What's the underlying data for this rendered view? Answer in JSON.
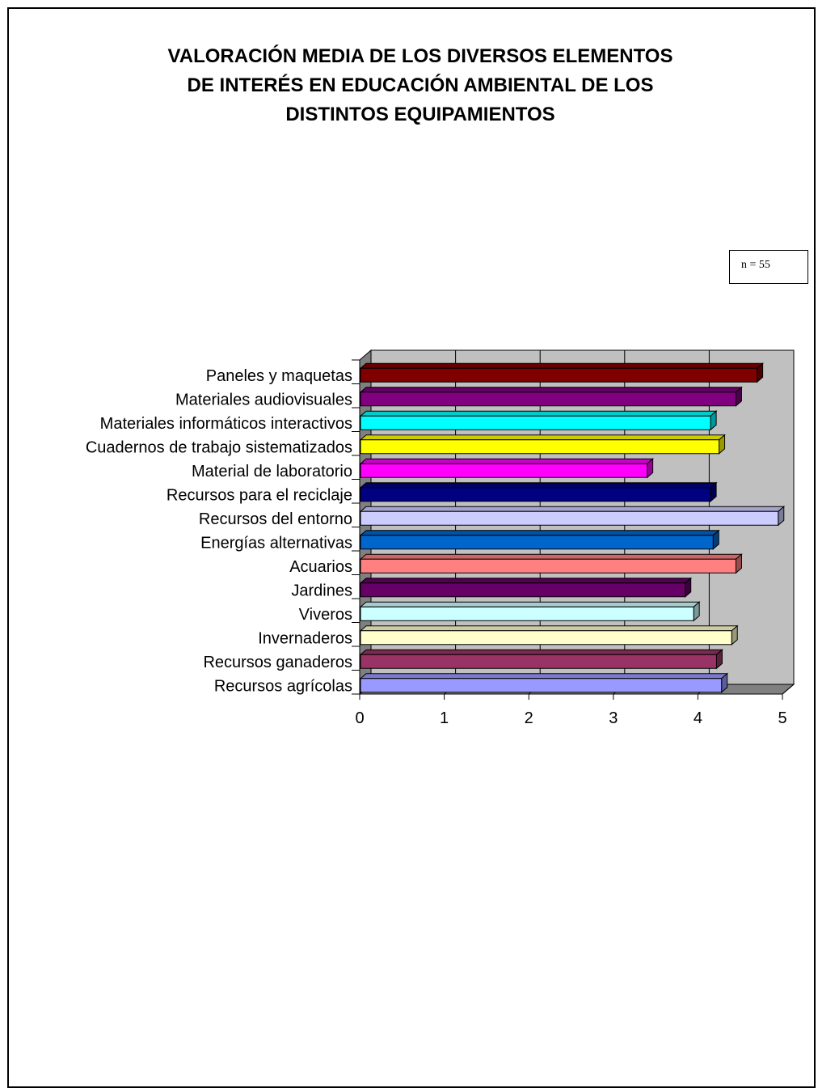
{
  "chart_data": {
    "type": "bar",
    "orientation": "horizontal",
    "three_d": true,
    "title": "VALORACIÓN MEDIA DE LOS DIVERSOS ELEMENTOS\nDE INTERÉS EN EDUCACIÓN AMBIENTAL DE LOS\nDISTINTOS EQUIPAMIENTOS",
    "annotation": "n = 55",
    "xlim": [
      0,
      5
    ],
    "x_ticks": [
      "0",
      "1",
      "2",
      "3",
      "4",
      "5"
    ],
    "grid": true,
    "legend": "none",
    "plot_background": "#c0c0c0",
    "categories": [
      "Paneles y maquetas",
      "Materiales audiovisuales",
      "Materiales informáticos interactivos",
      "Cuadernos de trabajo sistematizados",
      "Material de laboratorio",
      "Recursos para el reciclaje",
      "Recursos del entorno",
      "Energías alternativas",
      "Acuarios",
      "Jardines",
      "Viveros",
      "Invernaderos",
      "Recursos ganaderos",
      "Recursos agrícolas"
    ],
    "values": [
      4.7,
      4.45,
      4.15,
      4.25,
      3.4,
      4.15,
      4.95,
      4.18,
      4.45,
      3.85,
      3.95,
      4.4,
      4.22,
      4.28
    ],
    "colors": [
      "#800000",
      "#800080",
      "#00ffff",
      "#ffff00",
      "#ff00ff",
      "#000080",
      "#ccccff",
      "#0066cc",
      "#ff8080",
      "#660066",
      "#ccffff",
      "#ffffcc",
      "#993366",
      "#9999ff"
    ]
  }
}
